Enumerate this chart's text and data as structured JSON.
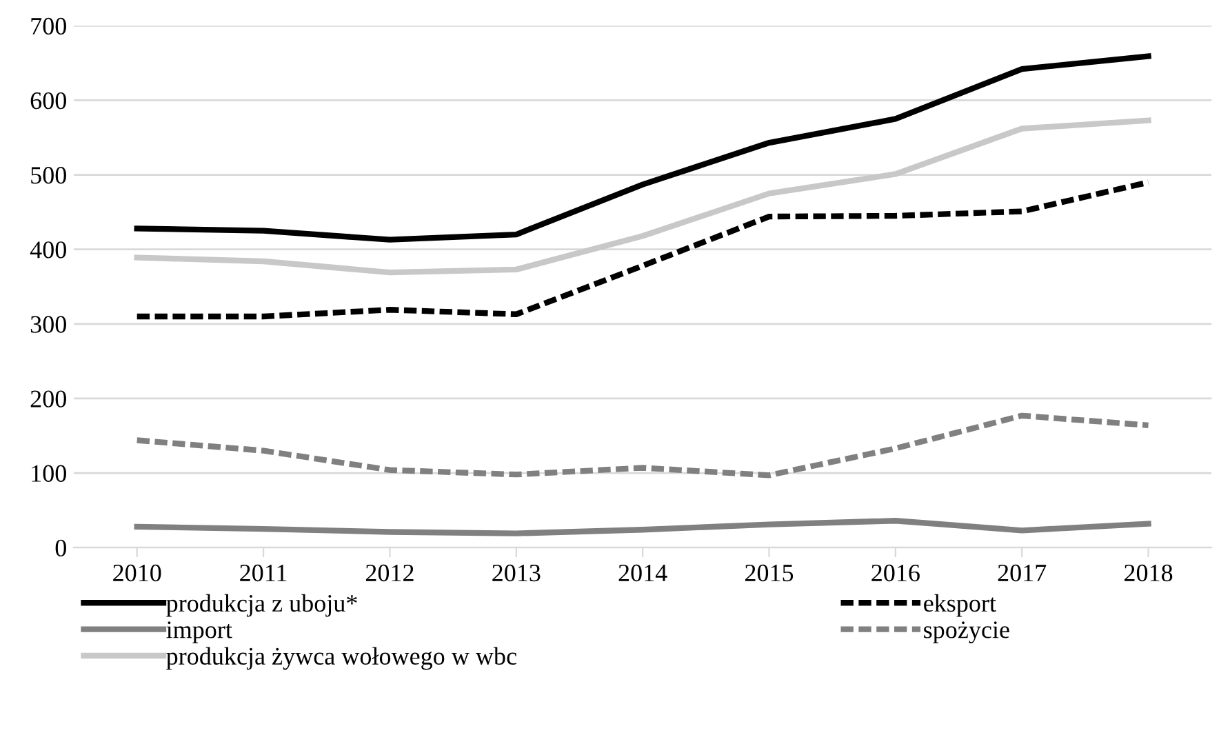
{
  "chart_data": {
    "type": "line",
    "categories": [
      "2010",
      "2011",
      "2012",
      "2013",
      "2014",
      "2015",
      "2016",
      "2017",
      "2018"
    ],
    "series": [
      {
        "name": "produkcja z uboju*",
        "color": "#000000",
        "line_style": "solid",
        "values": [
          428,
          425,
          413,
          420,
          487,
          543,
          575,
          642,
          659
        ]
      },
      {
        "name": "eksport",
        "color": "#000000",
        "line_style": "dashed",
        "values": [
          310,
          310,
          319,
          313,
          378,
          444,
          445,
          451,
          490
        ]
      },
      {
        "name": "import",
        "color": "#808080",
        "line_style": "solid",
        "values": [
          28,
          25,
          21,
          19,
          24,
          31,
          36,
          23,
          32
        ]
      },
      {
        "name": "spożycie",
        "color": "#808080",
        "line_style": "dashed",
        "values": [
          144,
          130,
          104,
          98,
          107,
          97,
          133,
          177,
          164
        ]
      },
      {
        "name": "produkcja żywca wołowego w wbc",
        "color": "#c8c8c8",
        "line_style": "solid",
        "values": [
          389,
          384,
          369,
          373,
          418,
          475,
          501,
          562,
          573
        ]
      }
    ],
    "ylim": [
      0,
      700
    ],
    "yticks": [
      0,
      100,
      200,
      300,
      400,
      500,
      600,
      700
    ],
    "grid": "y",
    "legend": "bottom",
    "marker": "none"
  }
}
